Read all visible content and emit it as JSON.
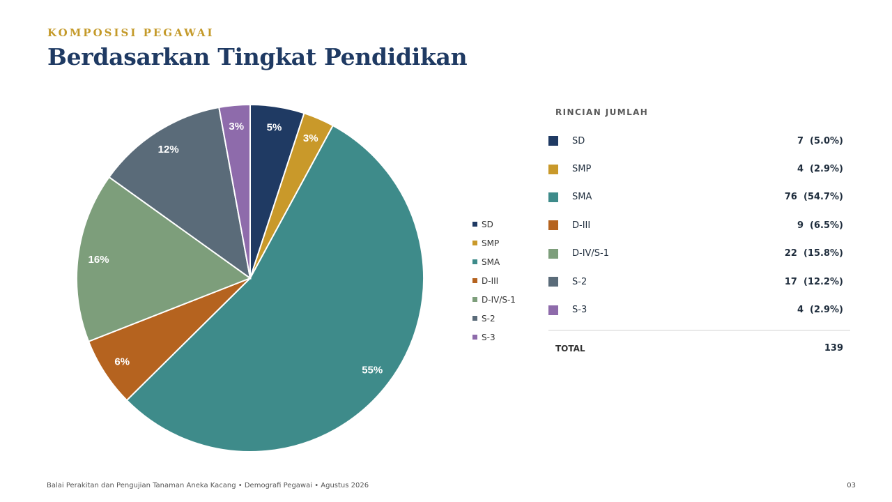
{
  "header": {
    "kicker": "KOMPOSISI PEGAWAI",
    "title": "Berdasarkan Tingkat Pendidikan"
  },
  "chart_data": {
    "type": "pie",
    "categories": [
      "SD",
      "SMP",
      "SMA",
      "D-III",
      "D-IV/S-1",
      "S-2",
      "S-3"
    ],
    "values": [
      7,
      4,
      76,
      9,
      22,
      17,
      4
    ],
    "data_labels": [
      "5%",
      "3%",
      "55%",
      "6%",
      "16%",
      "12%",
      "3%"
    ],
    "colors": [
      "#1f3a63",
      "#c9992a",
      "#3e8b8a",
      "#b5631f",
      "#7d9e7b",
      "#5a6b79",
      "#8e6bab"
    ],
    "legend_position": "right",
    "legend": [
      "SD",
      "SMP",
      "SMA",
      "D-III",
      "D-IV/S-1",
      "S-2",
      "S-3"
    ]
  },
  "breakdown": {
    "heading": "RINCIAN JUMLAH",
    "rows": [
      {
        "label": "SD",
        "value": "7  (5.0%)"
      },
      {
        "label": "SMP",
        "value": "4  (2.9%)"
      },
      {
        "label": "SMA",
        "value": "76  (54.7%)"
      },
      {
        "label": "D-III",
        "value": "9  (6.5%)"
      },
      {
        "label": "D-IV/S-1",
        "value": "22  (15.8%)"
      },
      {
        "label": "S-2",
        "value": "17  (12.2%)"
      },
      {
        "label": "S-3",
        "value": "4  (2.9%)"
      }
    ],
    "total_label": "TOTAL",
    "total_value": "139"
  },
  "footer": {
    "text": "Balai Perakitan dan Pengujian Tanaman Aneka Kacang  •  Demografi Pegawai  •  Agustus 2026",
    "page": "03"
  }
}
